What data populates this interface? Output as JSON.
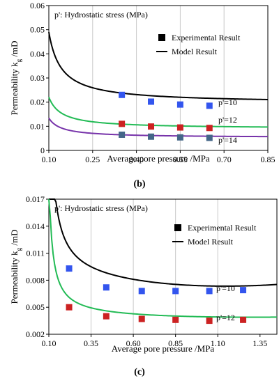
{
  "chart_data": [
    {
      "type": "line",
      "panel_label": "(b)",
      "note": "p': Hydrostatic stress (MPa)",
      "xlabel": "Average pore pressure /MPa",
      "ylabel_main": "Permeability k",
      "ylabel_sub": "g",
      "ylabel_unit": " /mD",
      "xlim": [
        0.1,
        0.85
      ],
      "ylim": [
        0,
        0.06
      ],
      "xticks": [
        0.1,
        0.25,
        0.4,
        0.55,
        0.7,
        0.85
      ],
      "xtick_labels": [
        "0.10",
        "0.25",
        "0.40",
        "0.55",
        "0.70",
        "0.85"
      ],
      "yticks": [
        0,
        0.01,
        0.02,
        0.03,
        0.04,
        0.05,
        0.06
      ],
      "ytick_labels": [
        "0",
        "0.01",
        "0.02",
        "0.03",
        "0.04",
        "0.05",
        "0.06"
      ],
      "grid": "vertical",
      "legend": {
        "placement": "upper-right",
        "marker_label": "Experimental Result",
        "line_label": "Model Result"
      },
      "series": [
        {
          "name": "p'=10",
          "color": "#000000",
          "marker_color": "#3355ee",
          "x": [
            0.35,
            0.45,
            0.55,
            0.65
          ],
          "y": [
            0.023,
            0.0202,
            0.019,
            0.0185
          ],
          "model": {
            "a": 0.0195,
            "b": 0.00124,
            "c": 0.058
          }
        },
        {
          "name": "p'=12",
          "color": "#22bb55",
          "marker_color": "#cc2222",
          "x": [
            0.35,
            0.45,
            0.55,
            0.65
          ],
          "y": [
            0.011,
            0.0099,
            0.0095,
            0.0093
          ],
          "model": {
            "a": 0.009,
            "b": 0.00055,
            "c": 0.058
          }
        },
        {
          "name": "p'=14",
          "color": "#7733aa",
          "marker_color": "#446688",
          "x": [
            0.35,
            0.45,
            0.55,
            0.65
          ],
          "y": [
            0.0065,
            0.0057,
            0.0054,
            0.0052
          ],
          "model": {
            "a": 0.0053,
            "b": 0.00034,
            "c": 0.058
          }
        }
      ]
    },
    {
      "type": "line",
      "panel_label": "(c)",
      "note": "p': Hydrostatic stress (MPa)",
      "xlabel": "Average pore pressure /MPa",
      "ylabel_main": "Permeability k",
      "ylabel_sub": "g",
      "ylabel_unit": " /mD",
      "xlim": [
        0.1,
        1.45
      ],
      "ylim": [
        0.002,
        0.017
      ],
      "xticks": [
        0.1,
        0.35,
        0.6,
        0.85,
        1.1,
        1.35
      ],
      "xtick_labels": [
        "0.10",
        "0.35",
        "0.60",
        "0.85",
        "1.10",
        "1.35"
      ],
      "yticks": [
        0.002,
        0.005,
        0.008,
        0.011,
        0.014,
        0.017
      ],
      "ytick_labels": [
        "0.002",
        "0.005",
        "0.008",
        "0.011",
        "0.014",
        "0.017"
      ],
      "grid": "vertical",
      "legend": {
        "placement": "upper-right",
        "marker_label": "Experimental Result",
        "line_label": "Model Result"
      },
      "series": [
        {
          "name": "p'=10",
          "color": "#000000",
          "marker_color": "#3355ee",
          "x": [
            0.22,
            0.44,
            0.65,
            0.85,
            1.05,
            1.25
          ],
          "y": [
            0.0093,
            0.0072,
            0.0068,
            0.0068,
            0.0068,
            0.0069
          ],
          "model": {
            "a": 0.0068,
            "b": 0.00054,
            "c": 0.08,
            "d": 0.00165,
            "e": 1.0
          }
        },
        {
          "name": "p'=12",
          "color": "#22bb55",
          "marker_color": "#cc2222",
          "x": [
            0.22,
            0.44,
            0.65,
            0.85,
            1.05,
            1.25
          ],
          "y": [
            0.005,
            0.004,
            0.0037,
            0.0036,
            0.0035,
            0.0036
          ],
          "model": {
            "a": 0.0036,
            "b": 0.00032,
            "c": 0.08,
            "d": 0.00035,
            "e": 1.0
          }
        }
      ]
    }
  ]
}
